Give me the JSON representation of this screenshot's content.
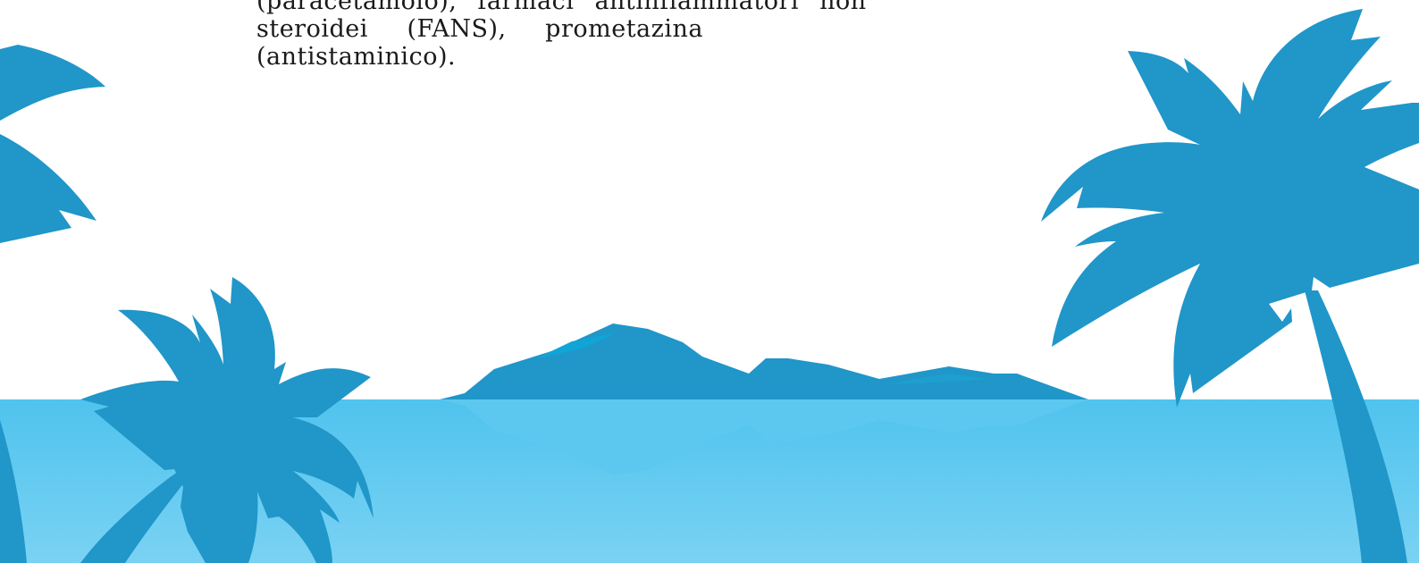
{
  "text_block": {
    "lines": [
      "(paracetamolo), farmaci antinfiammatori non",
      "steroidei (FANS), prometazina",
      "(antistaminico)."
    ]
  },
  "scene": {
    "sky_color": "#ffffff",
    "sea_top_color": "#4fc3ee",
    "sea_bottom_color": "#79d0f2",
    "silhouette_color": "#2096c9",
    "island_highlight_color": "#0fa5d6"
  }
}
